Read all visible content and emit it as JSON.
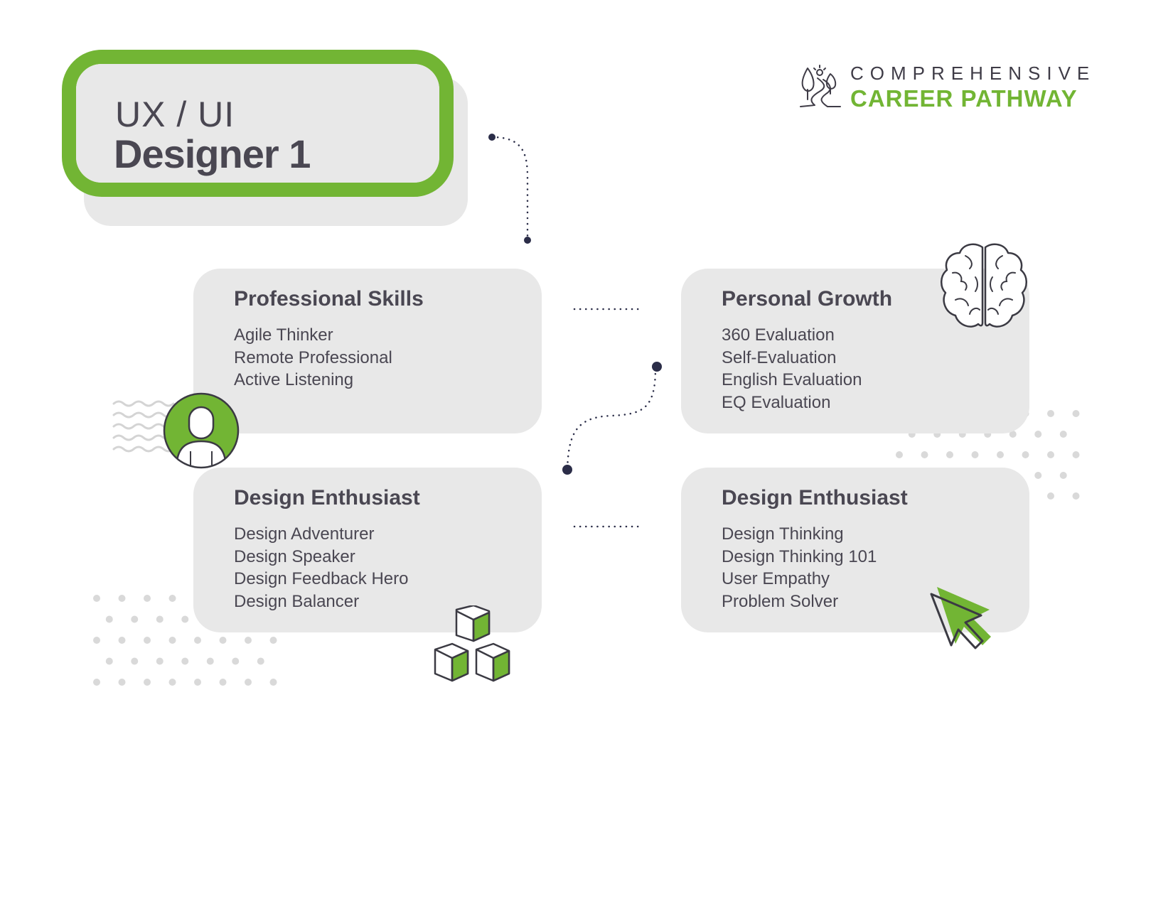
{
  "title": {
    "line1": "UX / UI",
    "line2": "Designer 1"
  },
  "brand": {
    "line1": "COMPREHENSIVE",
    "line2": "CAREER PATHWAY",
    "icon": "path-with-trees-icon"
  },
  "cards": [
    {
      "title": "Professional Skills",
      "items": [
        "Agile Thinker",
        "Remote Professional",
        "Active Listening"
      ],
      "icon": "person-avatar-icon"
    },
    {
      "title": "Personal Growth",
      "items": [
        "360 Evaluation",
        "Self-Evaluation",
        "English Evaluation",
        "EQ Evaluation"
      ],
      "icon": "brain-icon"
    },
    {
      "title": "Design Enthusiast",
      "items": [
        "Design Adventurer",
        "Design Speaker",
        "Design Feedback Hero",
        "Design Balancer"
      ],
      "icon": "cubes-icon"
    },
    {
      "title": "Design Enthusiast",
      "items": [
        "Design Thinking",
        "Design Thinking 101",
        "User Empathy",
        "Problem Solver"
      ],
      "icon": "cursor-arrow-icon"
    }
  ],
  "colors": {
    "accent_green": "#72b534",
    "card_gray": "#e8e8e8",
    "text_dark": "#4a4752",
    "connector_navy": "#2b2d48",
    "dot_gray": "#d9d9d9"
  }
}
